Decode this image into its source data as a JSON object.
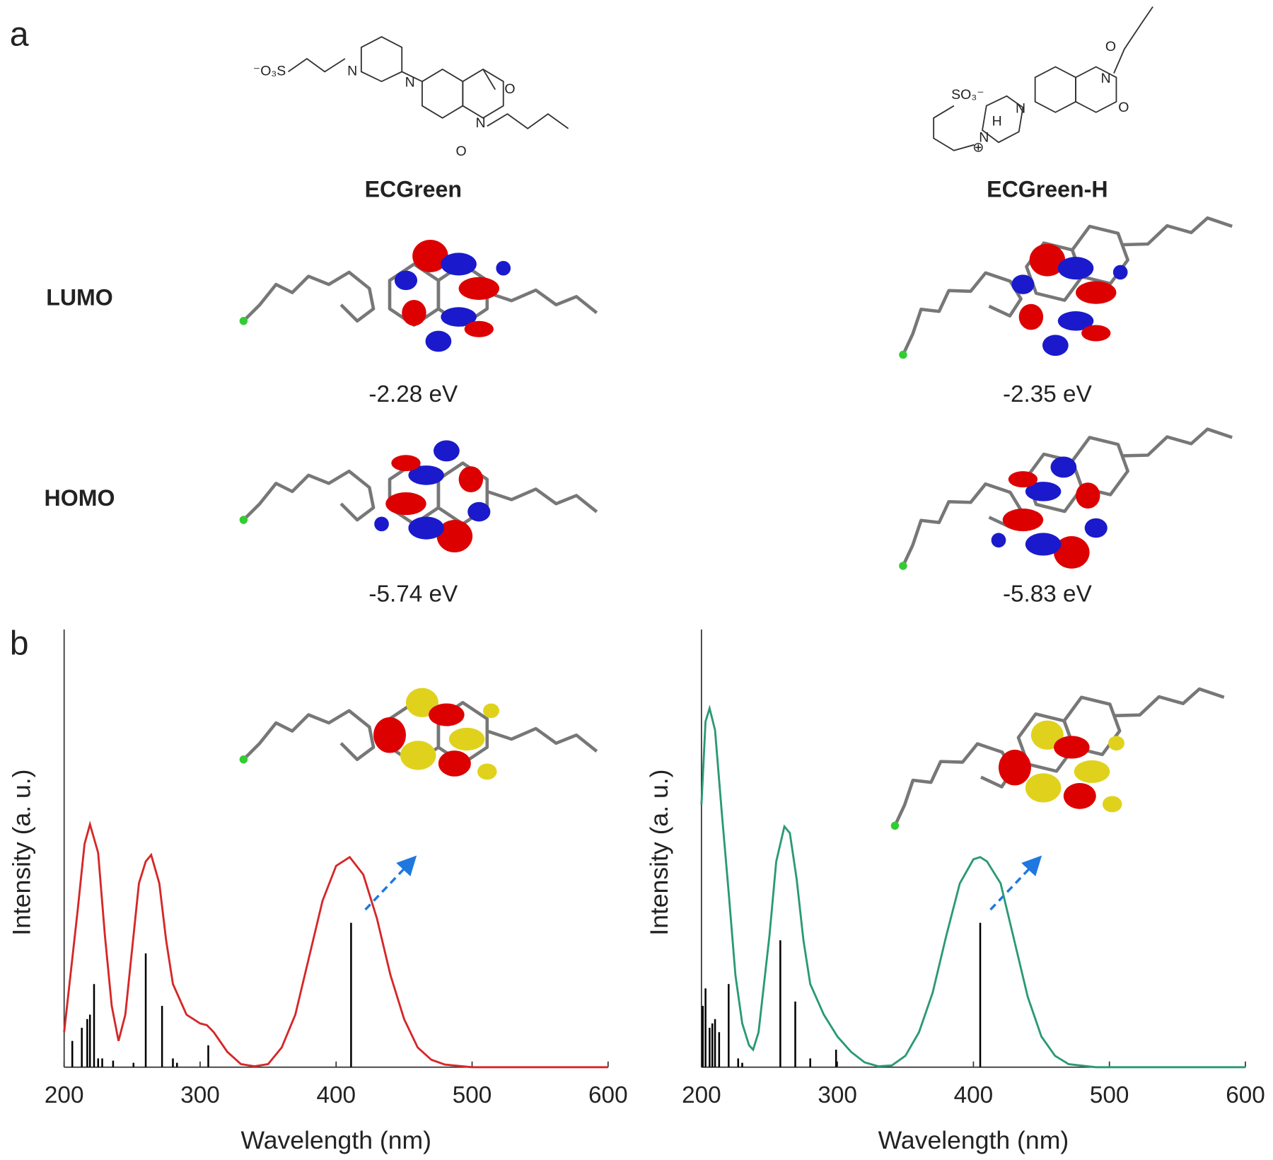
{
  "panel_a": {
    "label": "a",
    "row_labels": [
      "LUMO",
      "HOMO"
    ],
    "molecules": [
      {
        "name": "ECGreen",
        "atoms": [
          "⁻O₃S",
          "N",
          "N",
          "O",
          "N",
          "O"
        ],
        "lumo_energy": "-2.28 eV",
        "homo_energy": "-5.74 eV"
      },
      {
        "name": "ECGreen-H",
        "atoms": [
          "SO₃⁻",
          "N",
          "N",
          "H",
          "⊕",
          "O",
          "N",
          "O"
        ],
        "lumo_energy": "-2.35 eV",
        "homo_energy": "-5.83 eV"
      }
    ]
  },
  "panel_b": {
    "label": "b"
  },
  "chart_data": [
    {
      "type": "line",
      "x_label": "Wavelength (nm)",
      "y_label": "Intensity (a. u.)",
      "xlim": [
        200,
        600
      ],
      "xticks": [
        200,
        300,
        400,
        500,
        600
      ],
      "ylim": [
        0,
        1
      ],
      "x": [
        200,
        210,
        215,
        219,
        225,
        230,
        235,
        240,
        245,
        250,
        255,
        260,
        264,
        270,
        275,
        280,
        290,
        300,
        305,
        310,
        320,
        330,
        340,
        350,
        360,
        370,
        380,
        390,
        400,
        410,
        420,
        430,
        440,
        450,
        460,
        470,
        480,
        500,
        550,
        600
      ],
      "series": [
        {
          "color": "#d62728",
          "values": [
            0.08,
            0.36,
            0.51,
            0.555,
            0.49,
            0.3,
            0.14,
            0.06,
            0.12,
            0.27,
            0.42,
            0.47,
            0.485,
            0.42,
            0.29,
            0.19,
            0.12,
            0.1,
            0.096,
            0.08,
            0.035,
            0.007,
            0.002,
            0.007,
            0.045,
            0.12,
            0.25,
            0.38,
            0.46,
            0.48,
            0.44,
            0.34,
            0.21,
            0.11,
            0.045,
            0.017,
            0.006,
            0,
            0,
            0
          ]
        },
        {
          "style": "stick",
          "color": "#000000",
          "x": [
            206,
            213,
            217,
            219,
            222,
            225,
            228,
            236,
            251,
            260,
            272,
            280,
            283,
            306,
            411
          ],
          "values": [
            0.06,
            0.09,
            0.11,
            0.12,
            0.19,
            0.02,
            0.02,
            0.015,
            0.01,
            0.26,
            0.14,
            0.02,
            0.01,
            0.05,
            0.33
          ]
        }
      ]
    },
    {
      "type": "line",
      "x_label": "Wavelength (nm)",
      "y_label": "Intensity (a. u.)",
      "xlim": [
        200,
        600
      ],
      "xticks": [
        200,
        300,
        400,
        500,
        600
      ],
      "ylim": [
        0,
        1
      ],
      "x": [
        200,
        203,
        206,
        210,
        215,
        220,
        225,
        230,
        235,
        238,
        242,
        250,
        255,
        261,
        265,
        270,
        275,
        280,
        290,
        300,
        310,
        320,
        330,
        340,
        350,
        360,
        370,
        380,
        390,
        400,
        405,
        410,
        420,
        430,
        440,
        450,
        460,
        470,
        490,
        520,
        600
      ],
      "series": [
        {
          "color": "#2a9a72",
          "values": [
            0.6,
            0.79,
            0.82,
            0.77,
            0.58,
            0.4,
            0.21,
            0.1,
            0.05,
            0.04,
            0.08,
            0.3,
            0.47,
            0.55,
            0.535,
            0.43,
            0.29,
            0.19,
            0.12,
            0.07,
            0.035,
            0.011,
            0.002,
            0.004,
            0.026,
            0.08,
            0.17,
            0.3,
            0.42,
            0.475,
            0.48,
            0.47,
            0.42,
            0.29,
            0.16,
            0.07,
            0.026,
            0.007,
            0,
            0,
            0
          ]
        },
        {
          "style": "stick",
          "color": "#000000",
          "x": [
            201,
            203,
            206,
            208,
            210,
            213,
            220,
            227,
            230,
            258,
            269,
            280,
            299,
            405
          ],
          "values": [
            0.14,
            0.18,
            0.09,
            0.1,
            0.11,
            0.08,
            0.19,
            0.02,
            0.01,
            0.29,
            0.15,
            0.02,
            0.04,
            0.33
          ]
        }
      ]
    }
  ]
}
